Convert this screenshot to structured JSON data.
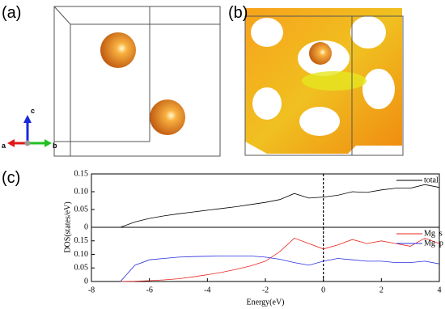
{
  "panel_labels": [
    "(a)",
    "(b)",
    "(c)"
  ],
  "axis_letters": [
    "a",
    "b",
    "c"
  ],
  "chart_data": [
    {
      "type": "line",
      "x": [
        -7,
        -6.5,
        -6,
        -5.5,
        -5,
        -4.5,
        -4,
        -3.5,
        -3,
        -2.5,
        -2,
        -1.5,
        -1,
        -0.5,
        0,
        0.5,
        1,
        1.5,
        2,
        2.5,
        3,
        3.5,
        4
      ],
      "series": [
        {
          "name": "total",
          "color": "#000000",
          "values": [
            0,
            0.015,
            0.025,
            0.032,
            0.038,
            0.043,
            0.048,
            0.053,
            0.058,
            0.064,
            0.07,
            0.078,
            0.095,
            0.082,
            0.085,
            0.09,
            0.1,
            0.098,
            0.105,
            0.11,
            0.11,
            0.12,
            0.112
          ]
        }
      ],
      "xlim": [
        -8,
        4
      ],
      "ylim": [
        0,
        0.15
      ],
      "yticks": [
        0,
        0.05,
        {
          "value": 0.1,
          "label": "0.10"
        },
        0.15
      ],
      "vline": 0,
      "ylabel": "DOS(states/eV)"
    },
    {
      "type": "line",
      "x": [
        -7,
        -6.5,
        -6,
        -5.5,
        -5,
        -4.5,
        -4,
        -3.5,
        -3,
        -2.5,
        -2,
        -1.5,
        -1,
        -0.5,
        0,
        0.5,
        1,
        1.5,
        2,
        2.5,
        3,
        3.5,
        4
      ],
      "series": [
        {
          "name": "Mg  s",
          "color": "#e8261e",
          "values": [
            0,
            0.001,
            0.003,
            0.006,
            0.01,
            0.017,
            0.025,
            0.034,
            0.045,
            0.058,
            0.075,
            0.11,
            0.16,
            0.14,
            0.12,
            0.135,
            0.155,
            0.14,
            0.15,
            0.14,
            0.13,
            0.16,
            0.14
          ]
        },
        {
          "name": "Mg  p",
          "color": "#2b2ee0",
          "values": [
            0,
            0.06,
            0.08,
            0.085,
            0.09,
            0.092,
            0.093,
            0.094,
            0.094,
            0.094,
            0.09,
            0.082,
            0.07,
            0.06,
            0.075,
            0.085,
            0.08,
            0.075,
            0.075,
            0.07,
            0.07,
            0.075,
            0.065
          ]
        }
      ],
      "xlim": [
        -8,
        4
      ],
      "ylim": [
        0,
        0.2
      ],
      "xticks": [
        -8,
        -6,
        -4,
        -2,
        0,
        2,
        4
      ],
      "yticks": [
        0,
        0.05,
        {
          "value": 0.1,
          "label": "0.10"
        },
        0.15
      ],
      "vline": 0,
      "xlabel": "Energy(eV)"
    }
  ]
}
